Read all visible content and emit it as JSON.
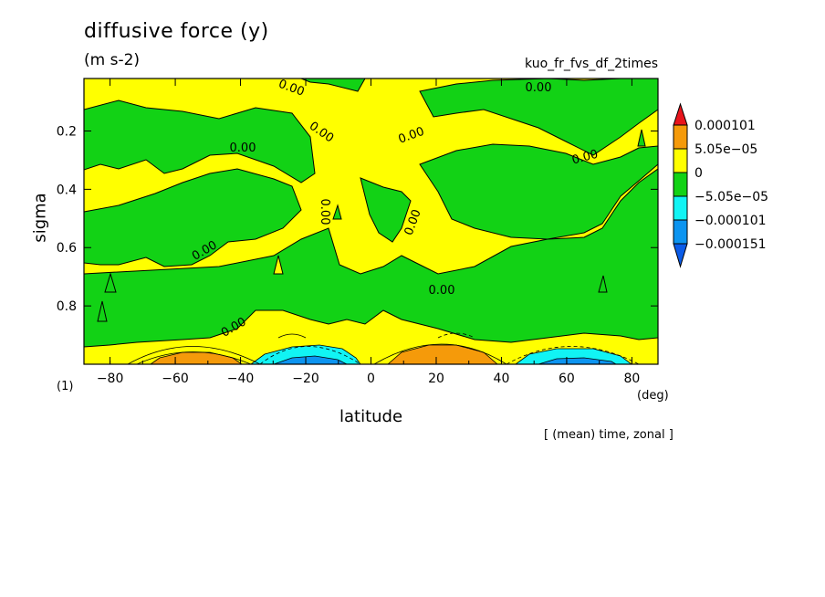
{
  "header": {
    "title": "diffusive force (y)",
    "units": "(m s-2)",
    "run_label": "kuo_fr_fvs_df_2times",
    "panel_number": "(1)",
    "average_note": "[ (mean) time, zonal ]"
  },
  "chart_data": {
    "type": "heatmap",
    "title": "diffusive force (y)",
    "xlabel": "latitude",
    "xunit": "(deg)",
    "ylabel": "sigma",
    "xlim": [
      -88,
      88
    ],
    "ylim": [
      1.0,
      0.02
    ],
    "x_ticks": [
      -80,
      -60,
      -40,
      -20,
      0,
      20,
      40,
      60,
      80
    ],
    "x_tick_labels": [
      "−80",
      "−60",
      "−40",
      "−20",
      "0",
      "20",
      "40",
      "60",
      "80"
    ],
    "y_ticks": [
      0.2,
      0.4,
      0.6,
      0.8
    ],
    "y_tick_labels": [
      "0.2",
      "0.4",
      "0.6",
      "0.8"
    ],
    "contour_labels": [
      "0.00",
      "0.00",
      "0.00",
      "0.00",
      "0.00",
      "0.00",
      "0.00",
      "0.00",
      "0.00",
      "0.00",
      "0.00"
    ],
    "colorbar": {
      "labels": [
        "0.000101",
        "5.05e−05",
        "0",
        "−5.05e−05",
        "−0.000101",
        "−0.000151"
      ],
      "colors": [
        "#e8141c",
        "#f59a0a",
        "#ffff00",
        "#12d215",
        "#11f4f4",
        "#0c94f0",
        "#0b5ce8"
      ]
    },
    "fill_colors": {
      "positive_high": "#f59a0a",
      "zero_positive": "#ffff00",
      "zero_negative": "#12d215",
      "negative_mid": "#11f4f4",
      "negative_low": "#0c94f0"
    }
  }
}
